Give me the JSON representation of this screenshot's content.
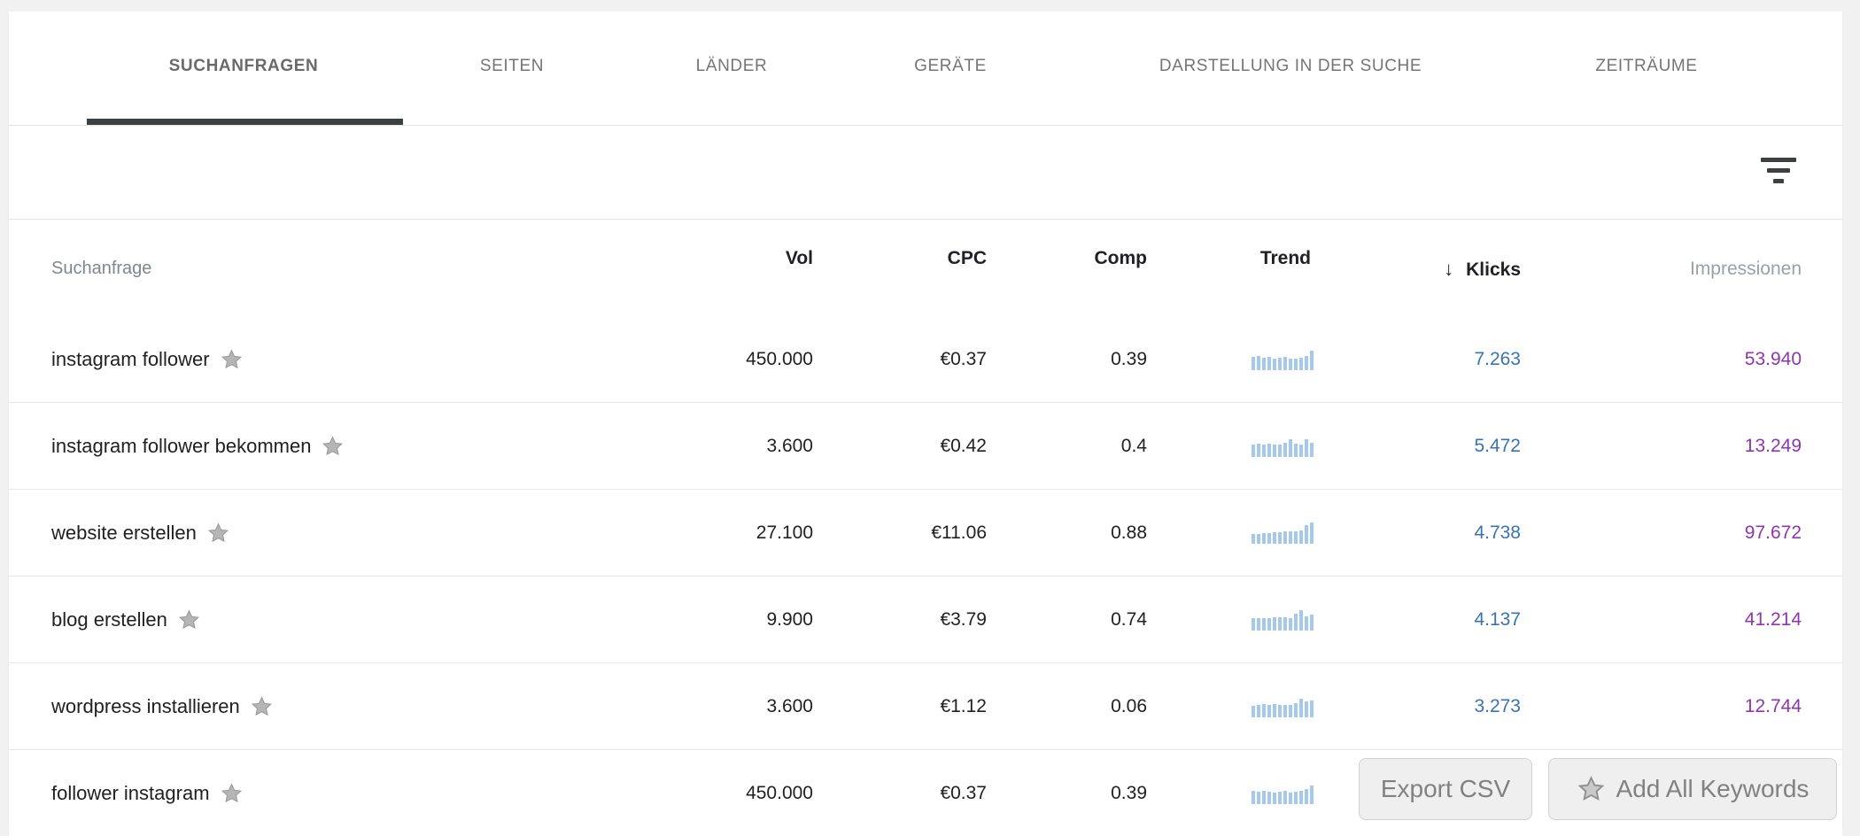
{
  "tabs": [
    {
      "label": "SUCHANFRAGEN",
      "active": true
    },
    {
      "label": "SEITEN",
      "active": false
    },
    {
      "label": "LÄNDER",
      "active": false
    },
    {
      "label": "GERÄTE",
      "active": false
    },
    {
      "label": "DARSTELLUNG IN DER SUCHE",
      "active": false
    },
    {
      "label": "ZEITRÄUME",
      "active": false
    }
  ],
  "filterbar": {
    "filter_icon": "filter-funnel-icon"
  },
  "table": {
    "header": {
      "query": "Suchanfrage",
      "vol": "Vol",
      "cpc": "CPC",
      "comp": "Comp",
      "trend": "Trend",
      "klicks": "Klicks",
      "klicks_sort_icon": "↓",
      "impressionen": "Impressionen"
    },
    "rows": [
      {
        "keyword": "instagram follower",
        "vol": "450.000",
        "cpc": "€0.37",
        "comp": "0.39",
        "klicks": "7.263",
        "impressionen": "53.940",
        "trend": [
          15,
          16,
          14,
          15,
          13,
          14,
          15,
          13,
          13,
          14,
          16,
          22
        ]
      },
      {
        "keyword": "instagram follower bekommen",
        "vol": "3.600",
        "cpc": "€0.42",
        "comp": "0.4",
        "klicks": "5.472",
        "impressionen": "13.249",
        "trend": [
          14,
          15,
          14,
          15,
          14,
          14,
          16,
          20,
          15,
          14,
          20,
          16
        ]
      },
      {
        "keyword": "website erstellen",
        "vol": "27.100",
        "cpc": "€11.06",
        "comp": "0.88",
        "klicks": "4.738",
        "impressionen": "97.672",
        "trend": [
          11,
          11,
          12,
          12,
          13,
          13,
          14,
          14,
          14,
          15,
          21,
          24
        ]
      },
      {
        "keyword": "blog erstellen",
        "vol": "9.900",
        "cpc": "€3.79",
        "comp": "0.74",
        "klicks": "4.137",
        "impressionen": "41.214",
        "trend": [
          14,
          14,
          14,
          14,
          15,
          15,
          15,
          14,
          19,
          23,
          16,
          18
        ]
      },
      {
        "keyword": "wordpress installieren",
        "vol": "3.600",
        "cpc": "€1.12",
        "comp": "0.06",
        "klicks": "3.273",
        "impressionen": "12.744",
        "trend": [
          13,
          14,
          15,
          14,
          15,
          14,
          14,
          14,
          16,
          21,
          18,
          19
        ]
      },
      {
        "keyword": "follower instagram",
        "vol": "450.000",
        "cpc": "€0.37",
        "comp": "0.39",
        "klicks": "",
        "impressionen": "",
        "trend": [
          15,
          14,
          15,
          14,
          13,
          14,
          15,
          13,
          14,
          15,
          17,
          21
        ]
      }
    ]
  },
  "float_buttons": {
    "export_csv": "Export CSV",
    "add_all_keywords": "Add All Keywords"
  },
  "colors": {
    "accent_blue": "#3973b2",
    "accent_purple": "#8e35af",
    "trend_bar": "#a5c8ee",
    "tab_underline": "#3c4043",
    "star_gray": "#b5b5b5"
  }
}
